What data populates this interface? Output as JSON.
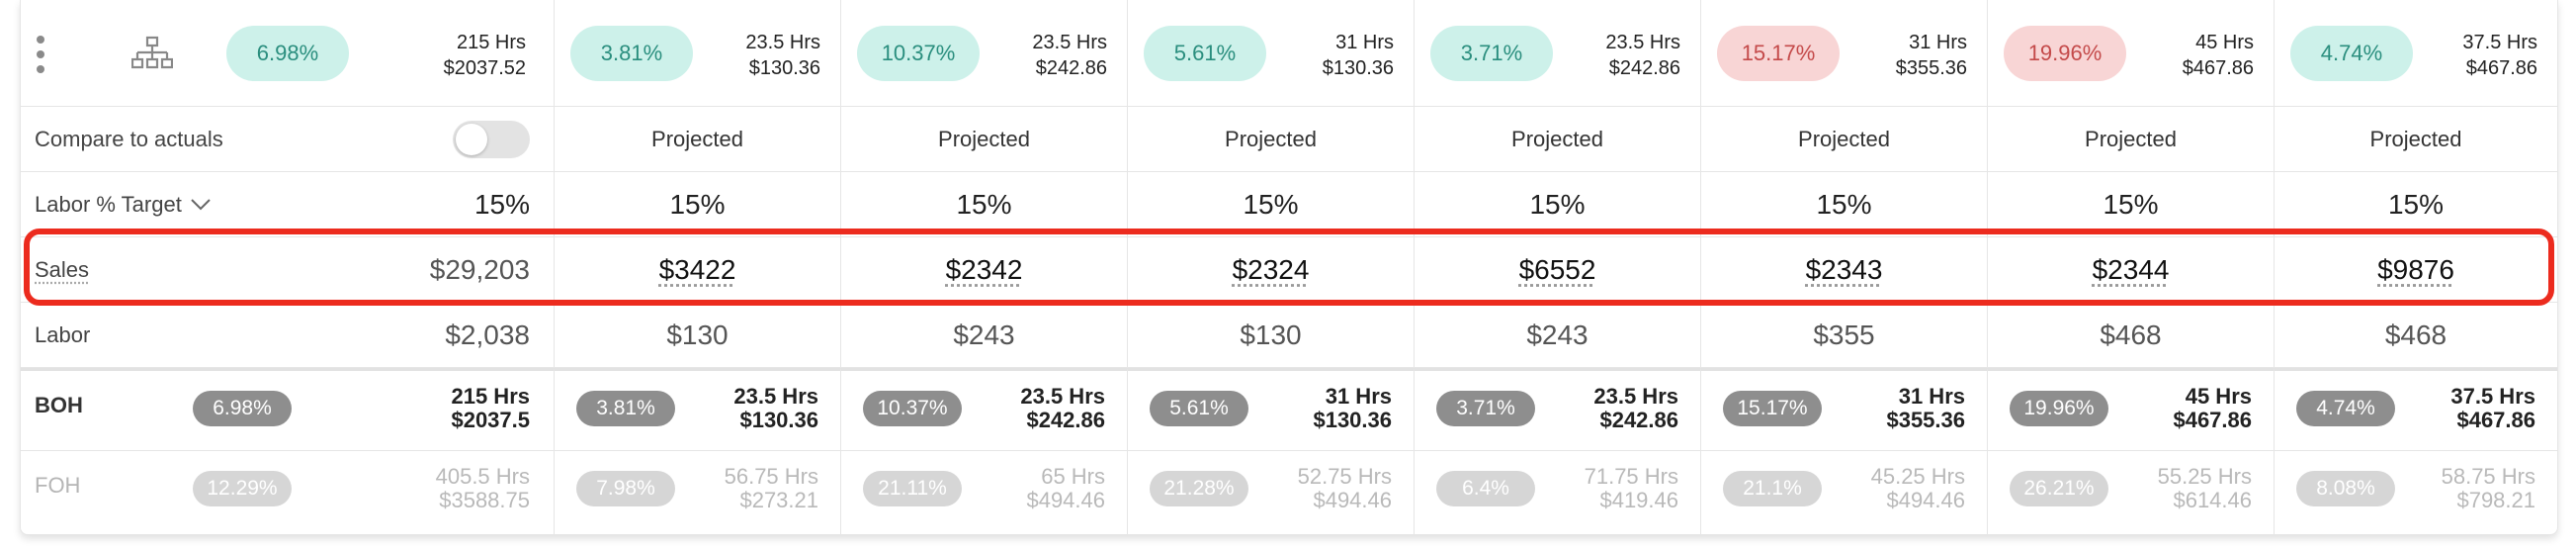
{
  "summary": {
    "total": {
      "pct": "6.98%",
      "pct_color": "green",
      "hrs": "215 Hrs",
      "cost": "$2037.52"
    },
    "days": [
      {
        "pct": "3.81%",
        "pct_color": "green",
        "hrs": "23.5 Hrs",
        "cost": "$130.36"
      },
      {
        "pct": "10.37%",
        "pct_color": "green",
        "hrs": "23.5 Hrs",
        "cost": "$242.86"
      },
      {
        "pct": "5.61%",
        "pct_color": "green",
        "hrs": "31 Hrs",
        "cost": "$130.36"
      },
      {
        "pct": "3.71%",
        "pct_color": "green",
        "hrs": "23.5 Hrs",
        "cost": "$242.86"
      },
      {
        "pct": "15.17%",
        "pct_color": "red",
        "hrs": "31 Hrs",
        "cost": "$355.36"
      },
      {
        "pct": "19.96%",
        "pct_color": "red",
        "hrs": "45 Hrs",
        "cost": "$467.86"
      },
      {
        "pct": "4.74%",
        "pct_color": "green",
        "hrs": "37.5 Hrs",
        "cost": "$467.86"
      }
    ]
  },
  "compare": {
    "label": "Compare to actuals",
    "toggle_on": false,
    "day_labels": [
      "Projected",
      "Projected",
      "Projected",
      "Projected",
      "Projected",
      "Projected",
      "Projected"
    ]
  },
  "labor_target": {
    "label": "Labor % Target",
    "total": "15%",
    "days": [
      "15%",
      "15%",
      "15%",
      "15%",
      "15%",
      "15%",
      "15%"
    ]
  },
  "sales": {
    "label": "Sales",
    "total": "$29,203",
    "days": [
      "$3422",
      "$2342",
      "$2324",
      "$6552",
      "$2343",
      "$2344",
      "$9876"
    ]
  },
  "labor": {
    "label": "Labor",
    "total": "$2,038",
    "days": [
      "$130",
      "$243",
      "$130",
      "$243",
      "$355",
      "$468",
      "$468"
    ]
  },
  "boh": {
    "label": "BOH",
    "total": {
      "pct": "6.98%",
      "hrs": "215 Hrs",
      "cost": "$2037.5"
    },
    "days": [
      {
        "pct": "3.81%",
        "hrs": "23.5 Hrs",
        "cost": "$130.36"
      },
      {
        "pct": "10.37%",
        "hrs": "23.5 Hrs",
        "cost": "$242.86"
      },
      {
        "pct": "5.61%",
        "hrs": "31 Hrs",
        "cost": "$130.36"
      },
      {
        "pct": "3.71%",
        "hrs": "23.5 Hrs",
        "cost": "$242.86"
      },
      {
        "pct": "15.17%",
        "hrs": "31 Hrs",
        "cost": "$355.36"
      },
      {
        "pct": "19.96%",
        "hrs": "45 Hrs",
        "cost": "$467.86"
      },
      {
        "pct": "4.74%",
        "hrs": "37.5 Hrs",
        "cost": "$467.86"
      }
    ]
  },
  "foh": {
    "label": "FOH",
    "total": {
      "pct": "12.29%",
      "hrs": "405.5 Hrs",
      "cost": "$3588.75"
    },
    "days": [
      {
        "pct": "7.98%",
        "hrs": "56.75 Hrs",
        "cost": "$273.21"
      },
      {
        "pct": "21.11%",
        "hrs": "65 Hrs",
        "cost": "$494.46"
      },
      {
        "pct": "21.28%",
        "hrs": "52.75 Hrs",
        "cost": "$494.46"
      },
      {
        "pct": "6.4%",
        "hrs": "71.75 Hrs",
        "cost": "$419.46"
      },
      {
        "pct": "21.1%",
        "hrs": "45.25 Hrs",
        "cost": "$494.46"
      },
      {
        "pct": "26.21%",
        "hrs": "55.25 Hrs",
        "cost": "$614.46"
      },
      {
        "pct": "8.08%",
        "hrs": "58.75 Hrs",
        "cost": "$798.21"
      }
    ]
  },
  "icons": {
    "menu": "kebab-menu-icon",
    "org": "org-chart-icon",
    "chevron": "chevron-down-icon"
  },
  "colors": {
    "green_bg": "#cdf1ea",
    "green_text": "#2a8e7e",
    "red_bg": "#f8d5d5",
    "red_text": "#c44a4a",
    "highlight": "#ec2b1e"
  }
}
